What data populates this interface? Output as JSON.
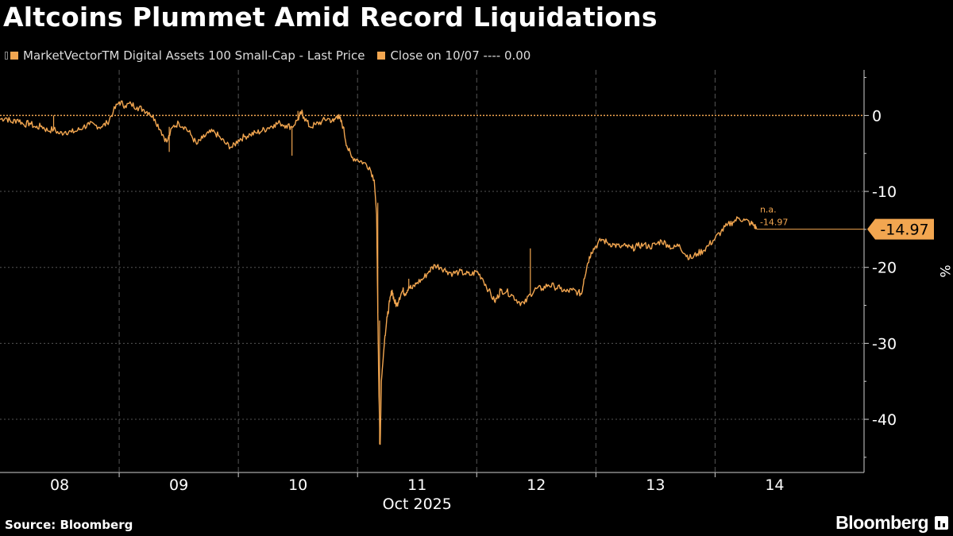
{
  "title": "Altcoins Plummet Amid Record Liquidations",
  "legend": [
    {
      "label": "MarketVectorTM Digital Assets 100 Small-Cap - Last Price",
      "color": "#f2a650",
      "name": "legend-item-last-price"
    },
    {
      "label": "Close on 10/07 ---- 0.00",
      "color": "#f2a650",
      "name": "legend-item-close"
    }
  ],
  "footer": {
    "source": "Source: Bloomberg",
    "brand": "Bloomberg"
  },
  "colors": {
    "series": "#f2a650",
    "grid": "#555555",
    "axis": "#cfcfcf",
    "background": "#000000"
  },
  "chart_data": {
    "type": "line",
    "title": "Altcoins Plummet Amid Record Liquidations",
    "xlabel": "Oct 2025",
    "ylabel": "%",
    "ylim": [
      -47,
      6
    ],
    "xlim": [
      0,
      7.25
    ],
    "yticks": [
      0,
      -10,
      -20,
      -30,
      -40
    ],
    "x_day_ticks": [
      {
        "pos": 0.5,
        "label": "08"
      },
      {
        "pos": 1.5,
        "label": "09"
      },
      {
        "pos": 2.5,
        "label": "10"
      },
      {
        "pos": 3.5,
        "label": "11"
      },
      {
        "pos": 4.5,
        "label": "12"
      },
      {
        "pos": 5.5,
        "label": "13"
      },
      {
        "pos": 6.5,
        "label": "14"
      }
    ],
    "x_gridlines": [
      1,
      2,
      3,
      4,
      5,
      6
    ],
    "month_label": "Oct 2025",
    "reference_line": {
      "name": "Close on 10/07",
      "value": 0.0
    },
    "last_value": -14.97,
    "last_value_label": "-14.97",
    "annotation": {
      "line1": "n.a.",
      "line2": "-14.97"
    },
    "grid": true,
    "legend_position": "top-left",
    "series": [
      {
        "name": "MarketVectorTM Digital Assets 100 Small-Cap - Last Price",
        "points": [
          [
            0.0,
            -0.5
          ],
          [
            0.05,
            -0.3
          ],
          [
            0.1,
            -0.9
          ],
          [
            0.15,
            -0.5
          ],
          [
            0.2,
            -1.2
          ],
          [
            0.25,
            -1.0
          ],
          [
            0.3,
            -1.6
          ],
          [
            0.35,
            -1.4
          ],
          [
            0.4,
            -2.0
          ],
          [
            0.45,
            -1.8
          ],
          [
            0.5,
            -2.4
          ],
          [
            0.55,
            -2.1
          ],
          [
            0.6,
            -2.2
          ],
          [
            0.65,
            -2.0
          ],
          [
            0.7,
            -1.5
          ],
          [
            0.75,
            -1.2
          ],
          [
            0.8,
            -1.3
          ],
          [
            0.85,
            -1.5
          ],
          [
            0.9,
            -1.0
          ],
          [
            0.95,
            0.5
          ],
          [
            1.0,
            1.8
          ],
          [
            1.05,
            1.3
          ],
          [
            1.1,
            1.5
          ],
          [
            1.15,
            1.1
          ],
          [
            1.2,
            0.8
          ],
          [
            1.25,
            0.4
          ],
          [
            1.3,
            -0.5
          ],
          [
            1.35,
            -2.0
          ],
          [
            1.4,
            -3.5
          ],
          [
            1.45,
            -1.5
          ],
          [
            1.5,
            -1.0
          ],
          [
            1.55,
            -1.5
          ],
          [
            1.6,
            -2.5
          ],
          [
            1.65,
            -3.8
          ],
          [
            1.7,
            -3.0
          ],
          [
            1.75,
            -2.3
          ],
          [
            1.8,
            -2.2
          ],
          [
            1.85,
            -3.0
          ],
          [
            1.9,
            -3.8
          ],
          [
            1.95,
            -4.2
          ],
          [
            2.0,
            -3.2
          ],
          [
            2.05,
            -2.8
          ],
          [
            2.1,
            -2.5
          ],
          [
            2.15,
            -2.3
          ],
          [
            2.2,
            -2.0
          ],
          [
            2.25,
            -1.6
          ],
          [
            2.3,
            -1.2
          ],
          [
            2.35,
            -1.0
          ],
          [
            2.4,
            -1.3
          ],
          [
            2.45,
            -1.5
          ],
          [
            2.5,
            -0.5
          ],
          [
            2.53,
            0.4
          ],
          [
            2.55,
            -0.2
          ],
          [
            2.6,
            -1.5
          ],
          [
            2.65,
            -1.2
          ],
          [
            2.7,
            -0.8
          ],
          [
            2.75,
            -0.4
          ],
          [
            2.8,
            -0.8
          ],
          [
            2.83,
            0.0
          ],
          [
            2.85,
            -0.4
          ],
          [
            2.88,
            -1.5
          ],
          [
            2.91,
            -4.0
          ],
          [
            2.95,
            -5.5
          ],
          [
            3.0,
            -5.8
          ],
          [
            3.05,
            -6.2
          ],
          [
            3.1,
            -6.8
          ],
          [
            3.14,
            -8.5
          ],
          [
            3.16,
            -13.0
          ],
          [
            3.17,
            -26.0
          ],
          [
            3.18,
            -37.0
          ],
          [
            3.19,
            -43.3
          ],
          [
            3.2,
            -35.0
          ],
          [
            3.215,
            -32.0
          ],
          [
            3.23,
            -29.0
          ],
          [
            3.25,
            -26.5
          ],
          [
            3.27,
            -24.5
          ],
          [
            3.29,
            -23.0
          ],
          [
            3.31,
            -24.5
          ],
          [
            3.33,
            -25.0
          ],
          [
            3.35,
            -24.0
          ],
          [
            3.38,
            -23.0
          ],
          [
            3.4,
            -23.5
          ],
          [
            3.43,
            -22.5
          ],
          [
            3.46,
            -22.8
          ],
          [
            3.5,
            -22.0
          ],
          [
            3.55,
            -21.5
          ],
          [
            3.6,
            -20.5
          ],
          [
            3.65,
            -19.7
          ],
          [
            3.7,
            -20.0
          ],
          [
            3.75,
            -20.5
          ],
          [
            3.8,
            -20.8
          ],
          [
            3.85,
            -20.6
          ],
          [
            3.9,
            -20.8
          ],
          [
            3.95,
            -21.0
          ],
          [
            4.0,
            -20.5
          ],
          [
            4.05,
            -21.5
          ],
          [
            4.1,
            -23.0
          ],
          [
            4.15,
            -24.5
          ],
          [
            4.18,
            -23.8
          ],
          [
            4.2,
            -23.0
          ],
          [
            4.25,
            -23.2
          ],
          [
            4.3,
            -23.7
          ],
          [
            4.35,
            -24.5
          ],
          [
            4.4,
            -24.8
          ],
          [
            4.45,
            -23.5
          ],
          [
            4.5,
            -22.8
          ],
          [
            4.55,
            -22.8
          ],
          [
            4.6,
            -22.3
          ],
          [
            4.65,
            -22.5
          ],
          [
            4.7,
            -22.8
          ],
          [
            4.75,
            -23.2
          ],
          [
            4.8,
            -23.0
          ],
          [
            4.85,
            -23.3
          ],
          [
            4.88,
            -23.5
          ],
          [
            4.9,
            -21.5
          ],
          [
            4.93,
            -19.5
          ],
          [
            4.96,
            -18.0
          ],
          [
            5.0,
            -17.2
          ],
          [
            5.05,
            -16.3
          ],
          [
            5.1,
            -16.8
          ],
          [
            5.15,
            -17.0
          ],
          [
            5.2,
            -17.3
          ],
          [
            5.25,
            -17.2
          ],
          [
            5.3,
            -17.5
          ],
          [
            5.35,
            -17.2
          ],
          [
            5.4,
            -17.0
          ],
          [
            5.45,
            -17.3
          ],
          [
            5.5,
            -17.0
          ],
          [
            5.55,
            -16.5
          ],
          [
            5.6,
            -17.0
          ],
          [
            5.65,
            -17.5
          ],
          [
            5.7,
            -17.0
          ],
          [
            5.75,
            -18.3
          ],
          [
            5.8,
            -18.8
          ],
          [
            5.85,
            -18.2
          ],
          [
            5.9,
            -17.8
          ],
          [
            5.95,
            -17.0
          ],
          [
            6.0,
            -16.2
          ],
          [
            6.05,
            -15.3
          ],
          [
            6.1,
            -14.5
          ],
          [
            6.15,
            -14.0
          ],
          [
            6.2,
            -13.5
          ],
          [
            6.25,
            -13.8
          ],
          [
            6.3,
            -14.2
          ],
          [
            6.33,
            -14.5
          ],
          [
            6.35,
            -14.97
          ]
        ]
      }
    ],
    "spikes": [
      {
        "x": 0.45,
        "y1": -2.0,
        "y2": 0.0
      },
      {
        "x": 1.42,
        "y1": -1.5,
        "y2": -4.8
      },
      {
        "x": 2.45,
        "y1": -1.5,
        "y2": -5.3
      },
      {
        "x": 2.5,
        "y1": -0.5,
        "y2": 0.6
      },
      {
        "x": 3.17,
        "y1": -26.0,
        "y2": -11.5
      },
      {
        "x": 3.185,
        "y1": -43.3,
        "y2": -27.0
      },
      {
        "x": 3.43,
        "y1": -22.5,
        "y2": -21.5
      },
      {
        "x": 4.45,
        "y1": -23.5,
        "y2": -17.5
      }
    ]
  }
}
